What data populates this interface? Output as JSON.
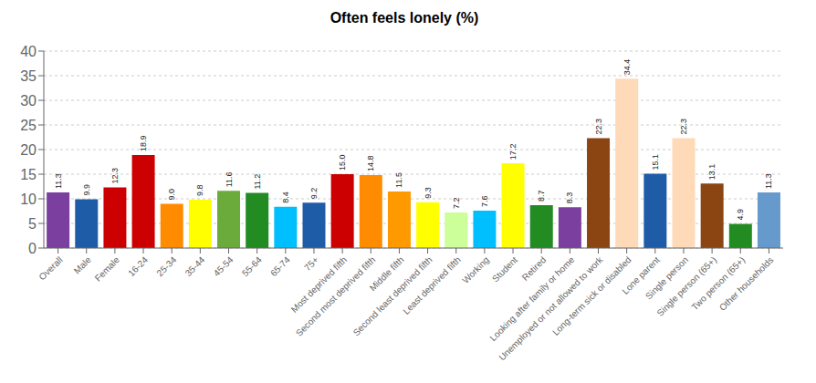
{
  "chart_data": {
    "type": "bar",
    "title": "Often feels lonely (%)",
    "categories": [
      "Overall",
      "Male",
      "Female",
      "16-24",
      "25-34",
      "35-44",
      "45-54",
      "55-64",
      "65-74",
      "75+",
      "Most deprived fifth",
      "Second most deprived fifth",
      "Middle fifth",
      "Second least deprived fifth",
      "Least deprived fifth",
      "Working",
      "Student",
      "Retired",
      "Looking after family or home",
      "Unemployed or not allowed to work",
      "Long-term sick or disabled",
      "Lone parent",
      "Single person",
      "Single person (65+)",
      "Two person (65+)",
      "Other households"
    ],
    "values": [
      11.3,
      9.9,
      12.3,
      18.9,
      9.0,
      9.8,
      11.6,
      11.2,
      8.4,
      9.2,
      15.0,
      14.8,
      11.5,
      9.3,
      7.2,
      7.6,
      17.2,
      8.7,
      8.3,
      22.3,
      34.4,
      15.1,
      22.3,
      13.1,
      4.9,
      11.3
    ],
    "value_labels": [
      "11.3",
      "9.9",
      "12.3",
      "18.9",
      "9.0",
      "9.8",
      "11.6",
      "11.2",
      "8.4",
      "9.2",
      "15.0",
      "14.8",
      "11.5",
      "9.3",
      "7.2",
      "7.6",
      "17.2",
      "8.7",
      "8.3",
      "22.3",
      "34.4",
      "15.1",
      "22.3",
      "13.1",
      "4.9",
      "11.3"
    ],
    "colors": [
      "#7B3FA0",
      "#1F5CA8",
      "#CC0000",
      "#CC0000",
      "#FF8C00",
      "#FFFF00",
      "#6AAB3B",
      "#228B22",
      "#00BFFF",
      "#1F5CA8",
      "#CC0000",
      "#FF8C00",
      "#FF9900",
      "#FFFF00",
      "#CCFF99",
      "#00BFFF",
      "#FFFF00",
      "#228B22",
      "#7B3FA0",
      "#8B4513",
      "#FFDAB9",
      "#1F5CA8",
      "#FFDAB9",
      "#8B4513",
      "#228B22",
      "#6699CC"
    ],
    "ylim": [
      0,
      40
    ],
    "yticks": [
      0,
      5,
      10,
      15,
      20,
      25,
      30,
      35,
      40
    ],
    "grid": true,
    "data_labels": true
  }
}
